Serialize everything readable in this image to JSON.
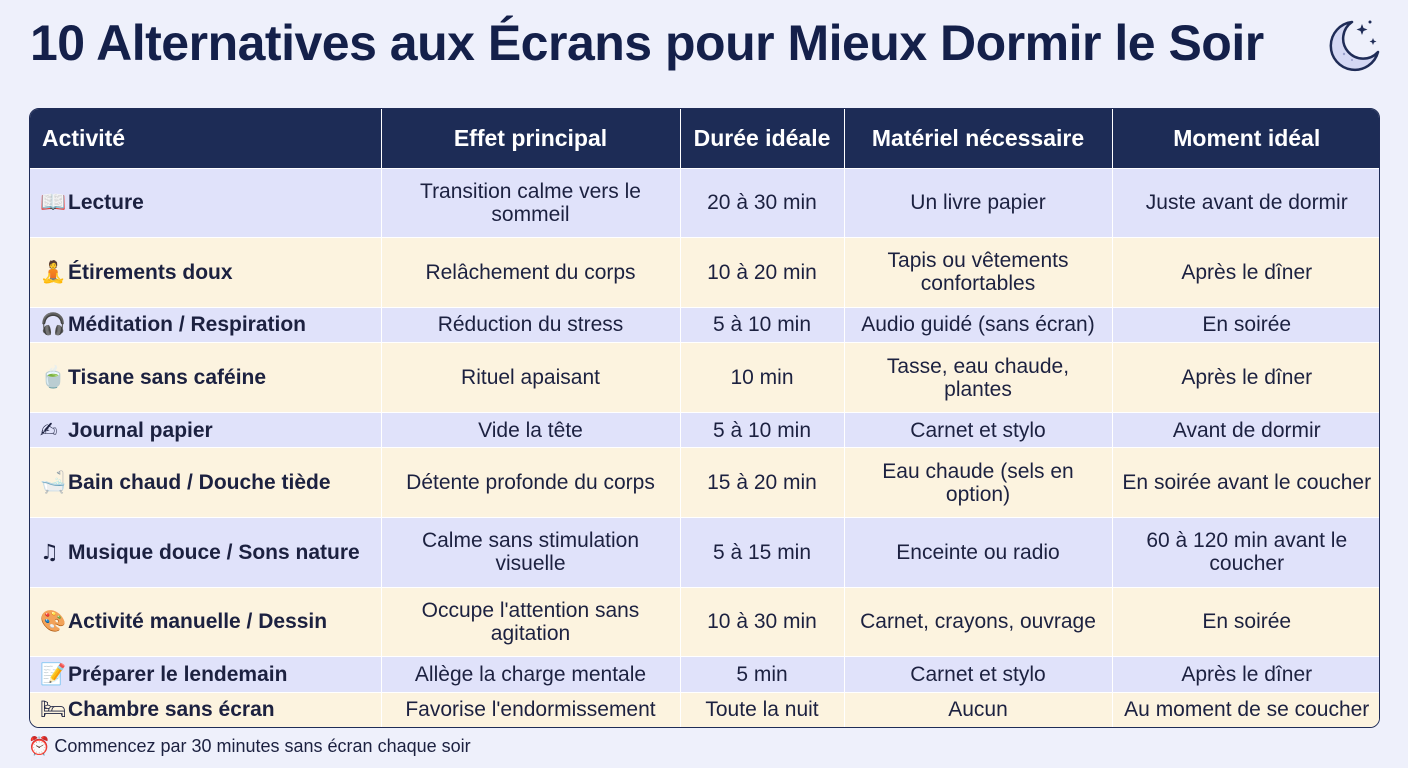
{
  "title": "10 Alternatives aux Écrans pour Mieux Dormir le Soir",
  "header_icon": "crescent-moon-stars-icon",
  "columns": [
    "Activité",
    "Effet principal",
    "Durée idéale",
    "Matériel nécessaire",
    "Moment idéal"
  ],
  "rows": [
    {
      "icon": "📖",
      "icon_name": "open-book-icon",
      "activity": "Lecture",
      "effect": "Transition calme vers le sommeil",
      "duration": "20 à 30 min",
      "material": "Un livre papier",
      "moment": "Juste avant de dormir"
    },
    {
      "icon": "🧘",
      "icon_name": "person-yoga-icon",
      "activity": "Étirements doux",
      "effect": "Relâchement du corps",
      "duration": "10 à 20 min",
      "material": "Tapis ou vêtements confortables",
      "moment": "Après le dîner"
    },
    {
      "icon": "🎧",
      "icon_name": "headphones-icon",
      "activity": "Méditation / Respiration",
      "effect": "Réduction du stress",
      "duration": "5 à 10 min",
      "material": "Audio guidé (sans écran)",
      "moment": "En soirée"
    },
    {
      "icon": "🍵",
      "icon_name": "tea-cup-icon",
      "activity": "Tisane sans caféine",
      "effect": "Rituel apaisant",
      "duration": "10 min",
      "material": "Tasse, eau chaude, plantes",
      "moment": "Après le dîner"
    },
    {
      "icon": "✍",
      "icon_name": "writing-hand-icon",
      "activity": "Journal papier",
      "effect": "Vide la tête",
      "duration": "5 à 10 min",
      "material": "Carnet et stylo",
      "moment": "Avant de dormir"
    },
    {
      "icon": "🛁",
      "icon_name": "bathtub-icon",
      "activity": "Bain chaud / Douche tiède",
      "effect": "Détente profonde du corps",
      "duration": "15 à 20 min",
      "material": "Eau chaude (sels en option)",
      "moment": "En soirée avant le coucher"
    },
    {
      "icon": "♫",
      "icon_name": "music-note-icon",
      "activity": "Musique douce / Sons nature",
      "effect": "Calme sans stimulation visuelle",
      "duration": "5 à 15 min",
      "material": "Enceinte ou radio",
      "moment": "60 à 120 min avant le coucher"
    },
    {
      "icon": "🎨",
      "icon_name": "artist-palette-icon",
      "activity": "Activité manuelle / Dessin",
      "effect": "Occupe l'attention sans agitation",
      "duration": "10 à 30 min",
      "material": "Carnet, crayons, ouvrage",
      "moment": "En soirée"
    },
    {
      "icon": "📝",
      "icon_name": "memo-icon",
      "activity": "Préparer le lendemain",
      "effect": "Allège la charge mentale",
      "duration": "5 min",
      "material": "Carnet et stylo",
      "moment": "Après le dîner"
    },
    {
      "icon": "🛏",
      "icon_name": "bed-icon",
      "activity": "Chambre sans écran",
      "effect": "Favorise l'endormissement",
      "duration": "Toute la nuit",
      "material": "Aucun",
      "moment": "Au moment de se coucher"
    }
  ],
  "footer": {
    "icon": "⏰",
    "icon_name": "alarm-clock-icon",
    "text": "Commencez par 30 minutes sans écran chaque soir"
  }
}
